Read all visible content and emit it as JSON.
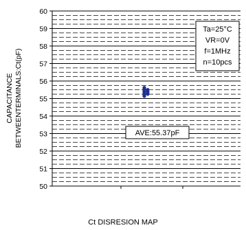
{
  "chart_data": {
    "type": "scatter",
    "title": "Ct DISRESION MAP",
    "ylabel_line1": "CAPACITANCE",
    "ylabel_line2": "BETWEENTERMINALS:Ct(pF)",
    "ylim": [
      50,
      60
    ],
    "yticks": [
      "50",
      "51",
      "52",
      "53",
      "54",
      "55",
      "56",
      "57",
      "58",
      "59",
      "60"
    ],
    "grid": true,
    "conditions": [
      "Ta=25°C",
      "VR=0V",
      "f=1MHz",
      "n=10pcs"
    ],
    "conditions_position": "top-right",
    "average_label": "AVE:55.37pF",
    "points": [
      {
        "x": 0,
        "y": 55.62
      },
      {
        "x": 0,
        "y": 55.54
      },
      {
        "x": 0,
        "y": 55.46
      },
      {
        "x": 0,
        "y": 55.38
      },
      {
        "x": 0,
        "y": 55.3
      },
      {
        "x": 0,
        "y": 55.22
      },
      {
        "x": 0,
        "y": 55.14
      },
      {
        "x": 1,
        "y": 55.5
      },
      {
        "x": 1,
        "y": 55.38
      },
      {
        "x": 1,
        "y": 55.26
      }
    ],
    "series_color": "#1f2f8f"
  }
}
